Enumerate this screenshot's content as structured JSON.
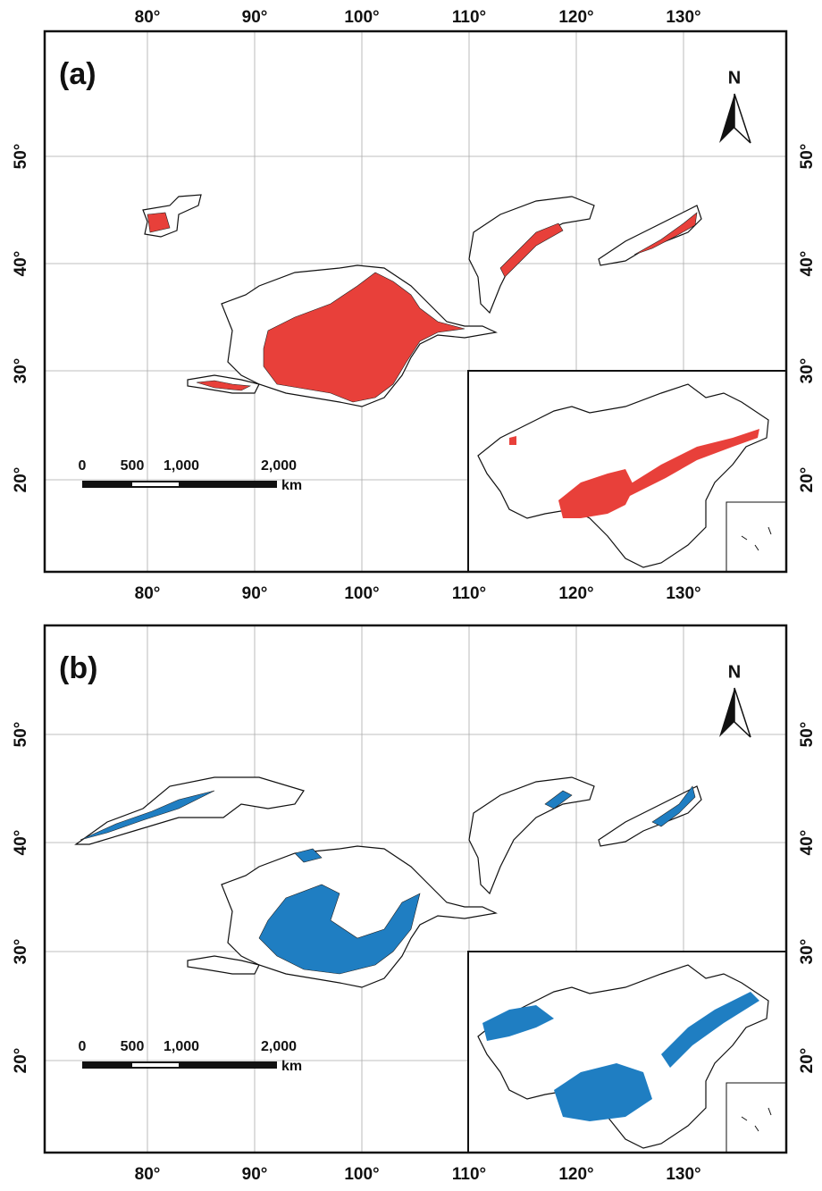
{
  "panels": [
    {
      "label": "(a)",
      "top_ticks": [
        "80°",
        "90°",
        "100°",
        "110°",
        "120°",
        "130°"
      ],
      "bottom_ticks": [
        "80°",
        "90°",
        "100°",
        "110°",
        "120°",
        "130°"
      ],
      "lat_ticks": [
        "20°",
        "30°",
        "40°",
        "50°"
      ],
      "north": "N",
      "scale": {
        "labels": [
          "0",
          "500",
          "1,000",
          "2,000"
        ],
        "unit": "km"
      }
    },
    {
      "label": "(b)",
      "bottom_ticks": [
        "80°",
        "90°",
        "100°",
        "110°",
        "120°",
        "130°"
      ],
      "lat_ticks": [
        "20°",
        "30°",
        "40°",
        "50°"
      ],
      "north": "N",
      "scale": {
        "labels": [
          "0",
          "500",
          "1,000",
          "2,000"
        ],
        "unit": "km"
      }
    }
  ]
}
